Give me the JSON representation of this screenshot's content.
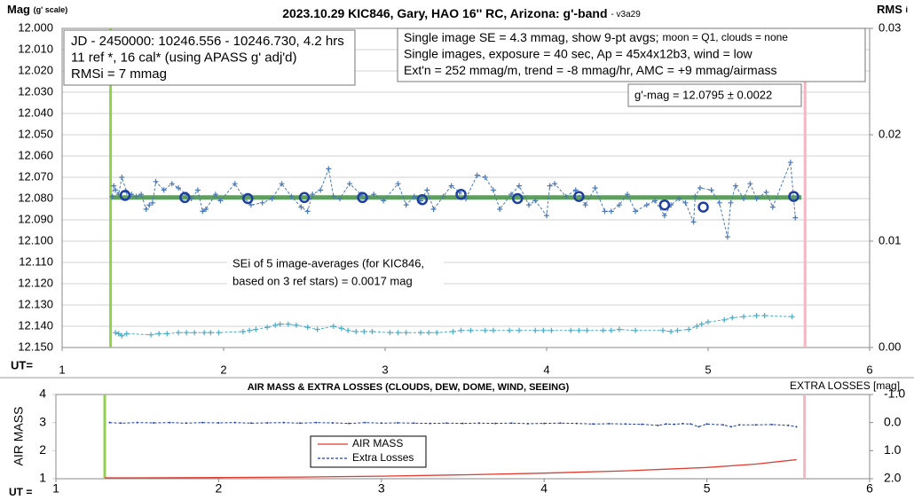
{
  "chart_data": [
    {
      "type": "line",
      "title": "2023.10.29 KIC846, Gary, HAO 16'' RC, Arizona: g'-band",
      "subtitle": "- v3a29",
      "ylabel": "Mag",
      "ylabel_note": "(g' scale)",
      "y2label": "RMS",
      "y2label_note": "i",
      "xlabel": "UT=",
      "xlim": [
        1,
        6
      ],
      "xticks": [
        1,
        2,
        3,
        4,
        5,
        6
      ],
      "ylim": [
        12.15,
        12.0
      ],
      "yticks": [
        {
          "value": 12.0,
          "label": "12.000"
        },
        {
          "value": 12.01,
          "label": "12.010"
        },
        {
          "value": 12.02,
          "label": "12.020"
        },
        {
          "value": 12.03,
          "label": "12.030"
        },
        {
          "value": 12.04,
          "label": "12.040"
        },
        {
          "value": 12.05,
          "label": "12.050"
        },
        {
          "value": 12.06,
          "label": "12.060"
        },
        {
          "value": 12.07,
          "label": "12.070"
        },
        {
          "value": 12.08,
          "label": "12.080"
        },
        {
          "value": 12.09,
          "label": "12.090"
        },
        {
          "value": 12.1,
          "label": "12.100"
        },
        {
          "value": 12.11,
          "label": "12.110"
        },
        {
          "value": 12.12,
          "label": "12.120"
        },
        {
          "value": 12.13,
          "label": "12.130"
        },
        {
          "value": 12.14,
          "label": "12.140"
        },
        {
          "value": 12.15,
          "label": "12.150"
        }
      ],
      "y2lim": [
        0,
        0.03
      ],
      "y2ticks": [
        {
          "value": 0,
          "label": "0.00"
        },
        {
          "value": 0.01,
          "label": "0.01"
        },
        {
          "value": 0.02,
          "label": "0.02"
        },
        {
          "value": 0.03,
          "label": "0.03"
        }
      ],
      "grid": true,
      "hline": {
        "value": 12.0795,
        "color": "#5e9e5e"
      },
      "vlines": [
        {
          "value": 1.3,
          "color": "#92d050"
        },
        {
          "value": 5.6,
          "color": "#f4b6c2"
        }
      ],
      "series": [
        {
          "color": "#4a78b8",
          "marker": "plus",
          "dashed": true,
          "x": [
            1.31,
            1.32,
            1.33,
            1.35,
            1.37,
            1.4,
            1.43,
            1.46,
            1.49,
            1.52,
            1.54,
            1.56,
            1.58,
            1.63,
            1.68,
            1.72,
            1.77,
            1.8,
            1.84,
            1.87,
            1.89,
            1.95,
            1.98,
            2.07,
            2.12,
            2.17,
            2.24,
            2.3,
            2.36,
            2.42,
            2.48,
            2.52,
            2.55,
            2.6,
            2.65,
            2.68,
            2.72,
            2.78,
            2.85,
            2.88,
            2.93,
            2.99,
            3.08,
            3.13,
            3.18,
            3.22,
            3.26,
            3.3,
            3.36,
            3.41,
            3.46,
            3.5,
            3.57,
            3.62,
            3.67,
            3.71,
            3.78,
            3.83,
            3.89,
            3.93,
            4.0,
            4.02,
            4.05,
            4.12,
            4.18,
            4.24,
            4.3,
            4.36,
            4.4,
            4.45,
            4.5,
            4.55,
            4.62,
            4.67,
            4.73,
            4.77,
            4.82,
            4.86,
            4.91,
            4.92,
            4.95,
            5.02,
            5.07,
            5.12,
            5.14,
            5.17,
            5.22,
            5.26,
            5.3,
            5.36,
            5.4,
            5.51,
            5.54
          ],
          "values": [
            12.079,
            12.074,
            12.076,
            12.078,
            12.07,
            12.077,
            12.078,
            12.079,
            12.078,
            12.085,
            12.083,
            12.082,
            12.072,
            12.076,
            12.073,
            12.075,
            12.078,
            12.08,
            12.076,
            12.086,
            12.085,
            12.078,
            12.081,
            12.073,
            12.079,
            12.083,
            12.082,
            12.08,
            12.073,
            12.079,
            12.084,
            12.086,
            12.078,
            12.076,
            12.066,
            12.079,
            12.08,
            12.073,
            12.078,
            12.08,
            12.078,
            12.081,
            12.073,
            12.083,
            12.079,
            12.081,
            12.076,
            12.085,
            12.079,
            12.074,
            12.077,
            12.08,
            12.069,
            12.07,
            12.076,
            12.085,
            12.078,
            12.074,
            12.083,
            12.081,
            12.088,
            12.074,
            12.073,
            12.079,
            12.076,
            12.083,
            12.075,
            12.086,
            12.086,
            12.083,
            12.078,
            12.086,
            12.083,
            12.081,
            12.088,
            12.083,
            12.08,
            12.082,
            12.091,
            12.079,
            12.075,
            12.076,
            12.082,
            12.098,
            12.082,
            12.074,
            12.08,
            12.073,
            12.08,
            12.077,
            12.084,
            12.063,
            12.089
          ]
        },
        {
          "color": "#1f3f9f",
          "marker": "circle",
          "dashed": false,
          "x": [
            1.39,
            1.76,
            2.15,
            2.5,
            2.86,
            3.23,
            3.47,
            3.82,
            4.2,
            4.73,
            4.97,
            5.53
          ],
          "values": [
            12.0785,
            12.0795,
            12.08,
            12.0795,
            12.0795,
            12.0805,
            12.078,
            12.08,
            12.079,
            12.083,
            12.084,
            12.079
          ]
        },
        {
          "color": "#4bacc6",
          "marker": "plus",
          "dashed": true,
          "axis": "y2",
          "x": [
            1.33,
            1.35,
            1.37,
            1.4,
            1.55,
            1.6,
            1.65,
            1.72,
            1.77,
            1.82,
            1.88,
            1.92,
            1.97,
            2.12,
            2.16,
            2.2,
            2.27,
            2.32,
            2.35,
            2.4,
            2.45,
            2.52,
            2.58,
            2.68,
            2.73,
            2.77,
            2.82,
            2.87,
            2.92,
            3.03,
            3.08,
            3.13,
            3.22,
            3.27,
            3.32,
            3.42,
            3.47,
            3.53,
            3.62,
            3.67,
            3.77,
            3.83,
            3.93,
            3.98,
            4.03,
            4.15,
            4.2,
            4.25,
            4.35,
            4.4,
            4.45,
            4.55,
            4.72,
            4.77,
            4.81,
            4.88,
            4.93,
            4.96,
            5.0,
            5.1,
            5.15,
            5.22,
            5.3,
            5.35,
            5.52
          ],
          "values": [
            0.0014,
            0.0013,
            0.0011,
            0.0013,
            0.0012,
            0.0013,
            0.0013,
            0.0014,
            0.0014,
            0.0014,
            0.0014,
            0.0014,
            0.0014,
            0.0015,
            0.0016,
            0.0017,
            0.0019,
            0.0021,
            0.0022,
            0.0022,
            0.0021,
            0.0019,
            0.0017,
            0.002,
            0.0018,
            0.0016,
            0.0015,
            0.0015,
            0.0015,
            0.0014,
            0.0014,
            0.0014,
            0.0014,
            0.0014,
            0.0014,
            0.0015,
            0.0016,
            0.0016,
            0.0016,
            0.0016,
            0.0016,
            0.0016,
            0.0016,
            0.0016,
            0.0016,
            0.0016,
            0.0016,
            0.0016,
            0.0016,
            0.0016,
            0.0017,
            0.0016,
            0.0016,
            0.0015,
            0.0016,
            0.0017,
            0.002,
            0.0022,
            0.0024,
            0.0026,
            0.0028,
            0.0029,
            0.003,
            0.003,
            0.0029
          ]
        }
      ],
      "annotations": {
        "info": [
          "JD - 2450000: 10246.556 - 10246.730, 4.2 hrs",
          "11 ref *, 16 cal* (using APASS g' adj'd)",
          "RMSi = 7 mmag"
        ],
        "settings": [
          "Single image SE = 4.3 mmag, show  9-pt avgs;",
          "moon = Q1, clouds = none",
          "Single images, exposure = 40 sec, Ap = 45x4x12b3, wind = low",
          "Ext'n = 252 mmag/m, trend = -8 mmag/hr, AMC = +9 mmag/airmass"
        ],
        "mag": "g'-mag = 12.0795 ± 0.0022",
        "sei": [
          "SEi of 5 image-averages (for KIC846,",
          "based on 3 ref stars) = 0.0017 mag"
        ]
      }
    },
    {
      "type": "line",
      "title": "AIR MASS & EXTRA LOSSES (CLOUDS, DEW, DOME, WIND, SEEING)",
      "ylabel": "AIR MASS",
      "y2label": "EXTRA LOSSES [mag]",
      "xlabel": "UT =",
      "xlim": [
        1,
        6
      ],
      "xticks": [
        1,
        2,
        3,
        4,
        5,
        6
      ],
      "ylim": [
        1,
        4
      ],
      "yticks": [
        1,
        2,
        3,
        4
      ],
      "y2lim": [
        2,
        -1
      ],
      "y2ticks": [
        {
          "value": -1,
          "label": "-1.0"
        },
        {
          "value": 0,
          "label": "0.0"
        },
        {
          "value": 1,
          "label": "1.0"
        },
        {
          "value": 2,
          "label": "2.0"
        }
      ],
      "grid": false,
      "vlines": [
        {
          "value": 1.3,
          "color": "#92d050"
        },
        {
          "value": 5.6,
          "color": "#f4b6c2"
        }
      ],
      "series": [
        {
          "name": "AIR MASS",
          "color": "#e03c31",
          "marker": "none",
          "dashed": false,
          "x": [
            1.3,
            1.5,
            2,
            2.5,
            3,
            3.5,
            4,
            4.5,
            5,
            5.3,
            5.55
          ],
          "values": [
            1.03,
            1.03,
            1.04,
            1.06,
            1.09,
            1.14,
            1.2,
            1.28,
            1.4,
            1.52,
            1.68
          ]
        },
        {
          "name": "Extra Losses",
          "color": "#1f3fa0",
          "marker": "dot",
          "dashed": true,
          "axis": "y2",
          "x": [
            1.33,
            1.4,
            1.5,
            1.6,
            1.7,
            1.8,
            1.9,
            2.0,
            2.1,
            2.2,
            2.3,
            2.4,
            2.5,
            2.6,
            2.7,
            2.8,
            2.9,
            3.0,
            3.1,
            3.2,
            3.3,
            3.4,
            3.5,
            3.6,
            3.7,
            3.8,
            3.9,
            4.0,
            4.1,
            4.2,
            4.3,
            4.4,
            4.5,
            4.6,
            4.7,
            4.75,
            4.8,
            4.85,
            4.9,
            4.95,
            5.0,
            5.1,
            5.15,
            5.2,
            5.3,
            5.4,
            5.5,
            5.55
          ],
          "values": [
            0.0,
            0.02,
            0.0,
            0.01,
            0.0,
            0.02,
            0.0,
            0.01,
            0.0,
            0.02,
            0.01,
            0.0,
            0.02,
            0.0,
            0.01,
            0.03,
            0.0,
            0.02,
            0.01,
            0.02,
            0.03,
            0.02,
            0.03,
            0.02,
            0.03,
            0.02,
            0.04,
            0.03,
            0.02,
            0.03,
            0.05,
            0.04,
            0.05,
            0.06,
            0.1,
            0.05,
            0.06,
            0.04,
            0.05,
            0.15,
            0.05,
            0.08,
            0.15,
            0.08,
            0.08,
            0.07,
            0.1,
            0.15
          ]
        }
      ]
    }
  ]
}
